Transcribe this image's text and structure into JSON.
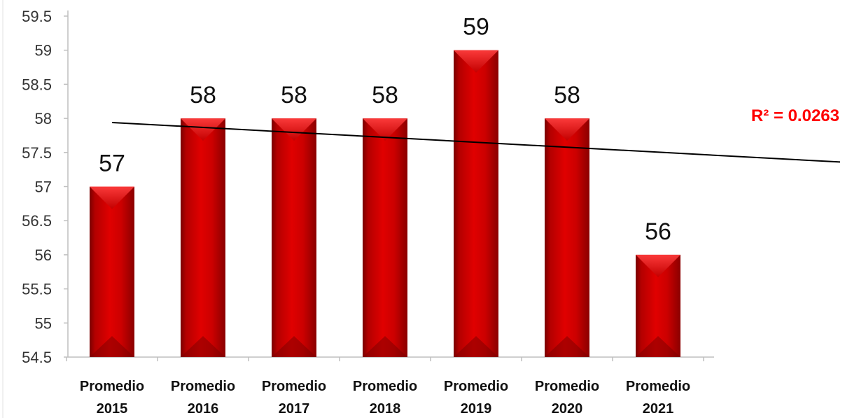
{
  "chart_data": {
    "type": "bar",
    "categories": [
      [
        "Promedio",
        "2015"
      ],
      [
        "Promedio",
        "2016"
      ],
      [
        "Promedio",
        "2017"
      ],
      [
        "Promedio",
        "2018"
      ],
      [
        "Promedio",
        "2019"
      ],
      [
        "Promedio",
        "2020"
      ],
      [
        "Promedio",
        "2021"
      ]
    ],
    "values": [
      57,
      58,
      58,
      58,
      59,
      58,
      56
    ],
    "data_labels": [
      "57",
      "58",
      "58",
      "58",
      "59",
      "58",
      "56"
    ],
    "y_ticks": [
      "54.5",
      "55",
      "55.5",
      "56",
      "56.5",
      "57",
      "57.5",
      "58",
      "58.5",
      "59",
      "59.5"
    ],
    "ylim": [
      54.5,
      59.5
    ],
    "title": "",
    "xlabel": "",
    "ylabel": "",
    "grid": false,
    "legend": "none",
    "trendline": {
      "type": "linear",
      "start_value": 57.94,
      "end_value": 57.36,
      "r2_label": "R² = 0.0263"
    },
    "colors": {
      "bar": "#cc0000",
      "bar_dark": "#7a0000",
      "bar_light": "#ff2a2a",
      "trendline": "#000000",
      "r2_text": "#ff0000",
      "axis": "#bfbfbf"
    }
  }
}
